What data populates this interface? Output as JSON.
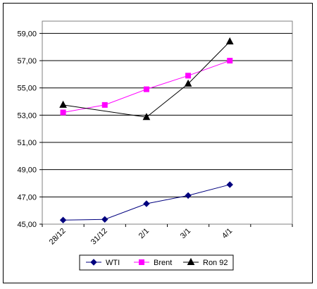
{
  "chart_data": {
    "type": "line",
    "categories": [
      "28/12",
      "31/12",
      "2/1",
      "3/1",
      "4/1"
    ],
    "series": [
      {
        "name": "WTI",
        "values": [
          45.3,
          45.35,
          46.5,
          47.1,
          47.9
        ],
        "color": "#00007f",
        "marker": "diamond"
      },
      {
        "name": "Brent",
        "values": [
          53.2,
          53.75,
          54.9,
          55.9,
          57.0
        ],
        "color": "#ff00ff",
        "marker": "square"
      },
      {
        "name": "Ron 92",
        "values": [
          53.75,
          null,
          52.85,
          55.3,
          58.4
        ],
        "color": "#000000",
        "marker": "triangle"
      }
    ],
    "yticks": [
      "45,00",
      "47,00",
      "49,00",
      "51,00",
      "53,00",
      "55,00",
      "57,00",
      "59,00"
    ],
    "ylim": [
      45,
      59.9
    ],
    "y_major_unit": 2,
    "x_slots": 6,
    "grid": true,
    "legend_position": "bottom"
  }
}
